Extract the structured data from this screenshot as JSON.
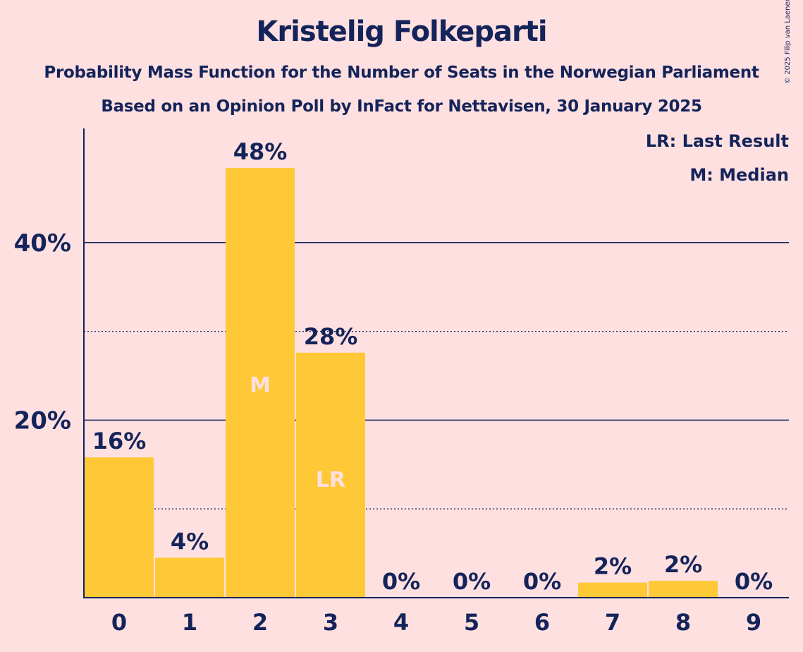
{
  "copyright": "© 2025 Filip van Laenen",
  "colors": {
    "background": "#FFE0E0",
    "bar": "#FFC837",
    "text": "#14245A",
    "bar_label": "#FFE0E0"
  },
  "chart_data": {
    "type": "bar",
    "title": "Kristelig Folkeparti",
    "subtitle": "Probability Mass Function for the Number of Seats in the Norwegian Parliament",
    "subtitle2": "Based on an Opinion Poll by InFact for Nettavisen, 30 January 2025",
    "categories": [
      "0",
      "1",
      "2",
      "3",
      "4",
      "5",
      "6",
      "7",
      "8",
      "9"
    ],
    "values": [
      15.8,
      4.5,
      48.4,
      27.6,
      0,
      0,
      0,
      1.7,
      1.9,
      0
    ],
    "value_labels": [
      "16%",
      "4%",
      "48%",
      "28%",
      "0%",
      "0%",
      "0%",
      "2%",
      "2%",
      "0%"
    ],
    "bar_markers": [
      "",
      "",
      "M",
      "LR",
      "",
      "",
      "",
      "",
      "",
      ""
    ],
    "ylim": [
      0,
      53
    ],
    "yticks_major": [
      20,
      40
    ],
    "ytick_labels": [
      "20%",
      "40%"
    ],
    "yticks_minor": [
      10,
      30
    ],
    "legend": {
      "position": "top-right",
      "entries": [
        "LR: Last Result",
        "M: Median"
      ]
    }
  }
}
